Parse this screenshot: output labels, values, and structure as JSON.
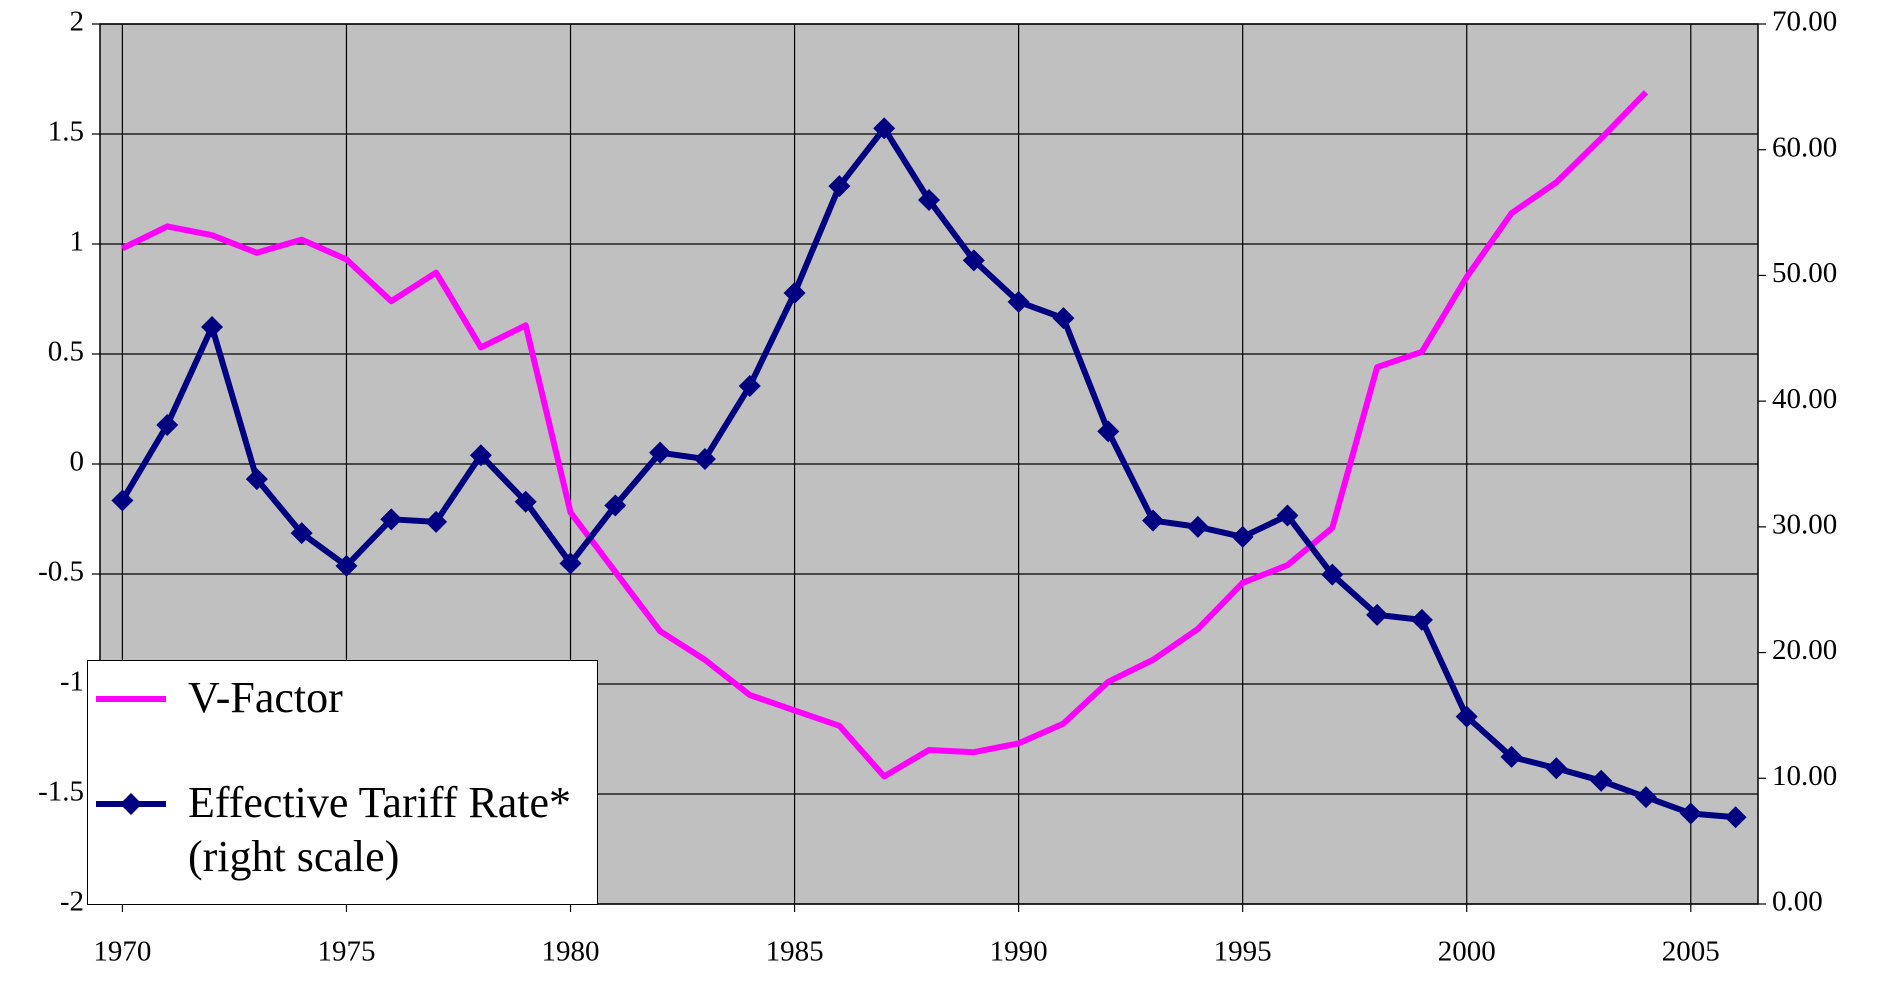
{
  "chart_data": {
    "type": "line",
    "x": [
      1970,
      1971,
      1972,
      1973,
      1974,
      1975,
      1976,
      1977,
      1978,
      1979,
      1980,
      1981,
      1982,
      1983,
      1984,
      1985,
      1986,
      1987,
      1988,
      1989,
      1990,
      1991,
      1992,
      1993,
      1994,
      1995,
      1996,
      1997,
      1998,
      1999,
      2000,
      2001,
      2002,
      2003,
      2004,
      2005,
      2006
    ],
    "series": [
      {
        "name": "V-Factor",
        "color": "#ff00ff",
        "marker": "none",
        "values": [
          0.98,
          1.08,
          1.04,
          0.96,
          1.02,
          0.93,
          0.74,
          0.87,
          0.53,
          0.63,
          -0.22,
          -0.49,
          -0.76,
          -0.89,
          -1.05,
          -1.12,
          -1.19,
          -1.42,
          -1.3,
          -1.31,
          -1.27,
          -1.18,
          -0.99,
          -0.89,
          -0.75,
          -0.54,
          -0.46,
          -0.29,
          0.44,
          0.51,
          0.85,
          1.14,
          1.28,
          1.48,
          1.69,
          null,
          null
        ]
      },
      {
        "name": "Effective Tariff Rate* (right scale)",
        "color": "#000080",
        "marker": "diamond",
        "axis": "y2",
        "values": [
          32.1,
          38.1,
          45.9,
          33.8,
          29.5,
          26.9,
          30.6,
          30.4,
          35.7,
          32.0,
          27.1,
          31.7,
          35.9,
          35.4,
          41.2,
          48.6,
          57.1,
          61.7,
          56.0,
          51.2,
          47.9,
          46.6,
          37.6,
          30.5,
          30.0,
          29.2,
          30.9,
          26.2,
          23.0,
          22.6,
          14.9,
          11.7,
          10.8,
          9.8,
          8.5,
          7.2,
          6.9
        ]
      }
    ],
    "xlim": [
      1969.5,
      2006.5
    ],
    "xticks": [
      1970,
      1975,
      1980,
      1985,
      1990,
      1995,
      2000,
      2005
    ],
    "ylim": [
      -2,
      2
    ],
    "yticks": [
      -2,
      -1.5,
      -1,
      -0.5,
      0,
      0.5,
      1,
      1.5,
      2
    ],
    "y2lim": [
      0,
      70
    ],
    "y2ticks": [
      {
        "value": 0,
        "label": "0.00"
      },
      {
        "value": 10,
        "label": "10.00"
      },
      {
        "value": 20,
        "label": "20.00"
      },
      {
        "value": 30,
        "label": "30.00"
      },
      {
        "value": 40,
        "label": "40.00"
      },
      {
        "value": 50,
        "label": "50.00"
      },
      {
        "value": 60,
        "label": "60.00"
      },
      {
        "value": 70,
        "label": "70.00"
      }
    ],
    "grid": true,
    "plot_background": "#c0c0c0",
    "legend_position": "lower-left"
  }
}
